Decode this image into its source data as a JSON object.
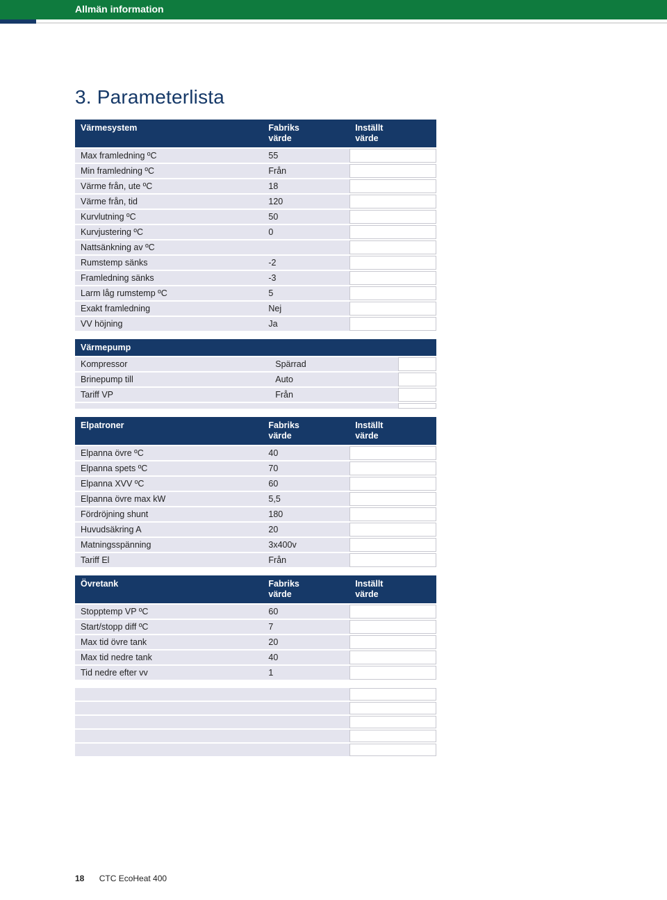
{
  "banner_title": "Allmän information",
  "heading": "3.  Parameterlista",
  "col_headers": {
    "factory": "Fabriks värde",
    "set": "Inställt värde"
  },
  "sections": [
    {
      "title": "Värmesystem",
      "show_cols": true,
      "rows": [
        {
          "p": "Max framledning ºC",
          "v": "55"
        },
        {
          "p": "Min framledning ºC",
          "v": "Från"
        },
        {
          "p": "Värme från, ute ºC",
          "v": "18"
        },
        {
          "p": "Värme från, tid",
          "v": "120"
        },
        {
          "p": "Kurvlutning ºC",
          "v": "50"
        },
        {
          "p": "Kurvjustering ºC",
          "v": "0"
        },
        {
          "p": "Nattsänkning av ºC",
          "v": ""
        },
        {
          "p": "Rumstemp sänks",
          "v": "-2"
        },
        {
          "p": "Framledning sänks",
          "v": "-3"
        },
        {
          "p": "Larm låg rumstemp ºC",
          "v": "5"
        },
        {
          "p": "Exakt framledning",
          "v": "Nej"
        },
        {
          "p": "VV höjning",
          "v": "Ja"
        }
      ]
    },
    {
      "title": "Värmepump",
      "show_cols": false,
      "rows": [
        {
          "p": "Kompressor",
          "v": "Spärrad"
        },
        {
          "p": "Brinepump till",
          "v": "Auto"
        },
        {
          "p": "Tariff VP",
          "v": "Från"
        },
        {
          "p": "",
          "v": ""
        }
      ]
    },
    {
      "title": "Elpatroner",
      "show_cols": true,
      "rows": [
        {
          "p": "Elpanna övre ºC",
          "v": "40"
        },
        {
          "p": "Elpanna spets ºC",
          "v": "70"
        },
        {
          "p": "Elpanna XVV ºC",
          "v": "60"
        },
        {
          "p": "Elpanna övre max kW",
          "v": "5,5"
        },
        {
          "p": "Fördröjning shunt",
          "v": "180"
        },
        {
          "p": "Huvudsäkring A",
          "v": "20"
        },
        {
          "p": "Matningsspänning",
          "v": "3x400v"
        },
        {
          "p": "Tariff El",
          "v": "Från"
        }
      ]
    },
    {
      "title": "Övretank",
      "show_cols": true,
      "rows": [
        {
          "p": "Stopptemp VP ºC",
          "v": "60"
        },
        {
          "p": "Start/stopp diff ºC",
          "v": "7"
        },
        {
          "p": "Max tid övre tank",
          "v": "20"
        },
        {
          "p": "Max tid nedre tank",
          "v": "40"
        },
        {
          "p": "Tid nedre efter vv",
          "v": "1"
        }
      ]
    }
  ],
  "empty_rows": 5,
  "footer": {
    "page": "18",
    "doc": "CTC EcoHeat 400"
  }
}
